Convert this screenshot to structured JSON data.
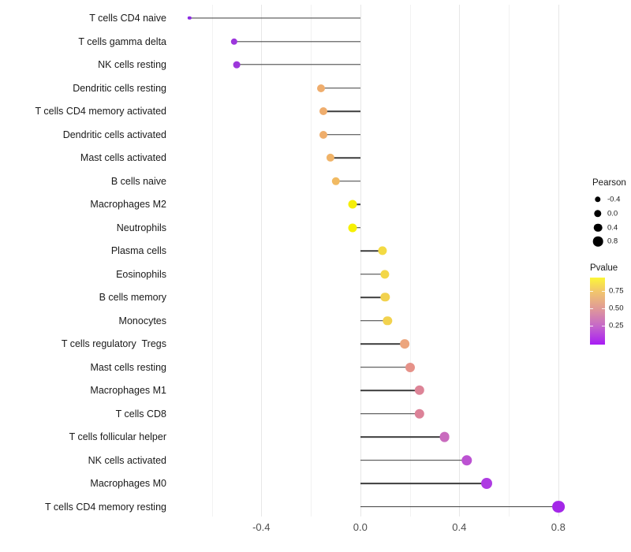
{
  "chart_data": {
    "type": "lollipop",
    "title": "",
    "xlabel": "",
    "ylabel": "",
    "xlim": [
      -0.758,
      0.877
    ],
    "baseline_x": 0.0,
    "grid": "vertical-only, light gray on white",
    "legend_position": "right",
    "x_major_ticks": {
      "values": [
        -0.4,
        0.0,
        0.4,
        0.8
      ],
      "labels": [
        "-0.4",
        "0.0",
        "0.4",
        "0.8"
      ]
    },
    "x_minor_gridlines": [
      -0.6,
      -0.2,
      0.2,
      0.6
    ],
    "points": [
      {
        "label": "T cells CD4 naive",
        "pearson": -0.69,
        "dot_color": "#8B2BE2",
        "dot_radius": 2.2
      },
      {
        "label": "T cells gamma delta",
        "pearson": -0.51,
        "dot_color": "#9C36DC",
        "dot_radius": 4.2
      },
      {
        "label": "NK cells resting",
        "pearson": -0.5,
        "dot_color": "#9D37DB",
        "dot_radius": 4.4
      },
      {
        "label": "Dendritic cells resting",
        "pearson": -0.16,
        "dot_color": "#EFAD6D",
        "dot_radius": 5.0
      },
      {
        "label": "T cells CD4 memory activated",
        "pearson": -0.15,
        "dot_color": "#EFAD6D",
        "dot_radius": 5.0
      },
      {
        "label": "Dendritic cells activated",
        "pearson": -0.15,
        "dot_color": "#EFAE6C",
        "dot_radius": 5.0
      },
      {
        "label": "Mast cells activated",
        "pearson": -0.12,
        "dot_color": "#F0B368",
        "dot_radius": 5.1
      },
      {
        "label": "B cells naive",
        "pearson": -0.1,
        "dot_color": "#F1BA62",
        "dot_radius": 5.2
      },
      {
        "label": "Macrophages M2",
        "pearson": -0.03,
        "dot_color": "#F5EE09",
        "dot_radius": 5.5
      },
      {
        "label": "Neutrophils",
        "pearson": -0.03,
        "dot_color": "#F6F002",
        "dot_radius": 5.5
      },
      {
        "label": "Plasma cells",
        "pearson": 0.09,
        "dot_color": "#F3DA43",
        "dot_radius": 5.6
      },
      {
        "label": "Eosinophils",
        "pearson": 0.1,
        "dot_color": "#F3D748",
        "dot_radius": 5.6
      },
      {
        "label": "B cells memory",
        "pearson": 0.1,
        "dot_color": "#F2D24E",
        "dot_radius": 5.7
      },
      {
        "label": "Monocytes",
        "pearson": 0.11,
        "dot_color": "#F2D24E",
        "dot_radius": 5.7
      },
      {
        "label": "T cells regulatory  Tregs",
        "pearson": 0.18,
        "dot_color": "#ECA57D",
        "dot_radius": 5.9
      },
      {
        "label": "Mast cells resting",
        "pearson": 0.2,
        "dot_color": "#E69289",
        "dot_radius": 6.0
      },
      {
        "label": "Macrophages M1",
        "pearson": 0.24,
        "dot_color": "#DD8497",
        "dot_radius": 6.2
      },
      {
        "label": "T cells CD8",
        "pearson": 0.24,
        "dot_color": "#DC8298",
        "dot_radius": 6.2
      },
      {
        "label": "T cells follicular helper",
        "pearson": 0.34,
        "dot_color": "#C96BBE",
        "dot_radius": 6.4
      },
      {
        "label": "NK cells activated",
        "pearson": 0.43,
        "dot_color": "#BC52D2",
        "dot_radius": 6.7
      },
      {
        "label": "Macrophages M0",
        "pearson": 0.51,
        "dot_color": "#AE3CE2",
        "dot_radius": 7.0
      },
      {
        "label": "T cells CD4 memory resting",
        "pearson": 0.8,
        "dot_color": "#A428E8",
        "dot_radius": 7.9
      }
    ],
    "size_legend": {
      "title": "Pearson",
      "dot_color": "#000000",
      "entries": [
        {
          "label": "-0.4",
          "radius": 3.7
        },
        {
          "label": "0.0",
          "radius": 4.7
        },
        {
          "label": "0.4",
          "radius": 5.3
        },
        {
          "label": "0.8",
          "radius": 6.3
        }
      ]
    },
    "color_legend": {
      "title": "Pvalue",
      "tick_labels": [
        "0.75",
        "0.50",
        "0.25"
      ],
      "tick_positions": [
        0.2,
        0.46,
        0.72
      ],
      "gradient_stops_top_to_bottom": [
        {
          "pos": 0.0,
          "color": "#FCF637"
        },
        {
          "pos": 0.2,
          "color": "#F2C76B"
        },
        {
          "pos": 0.46,
          "color": "#E09A97"
        },
        {
          "pos": 0.72,
          "color": "#C568C9"
        },
        {
          "pos": 1.0,
          "color": "#A81CF4"
        }
      ]
    }
  }
}
